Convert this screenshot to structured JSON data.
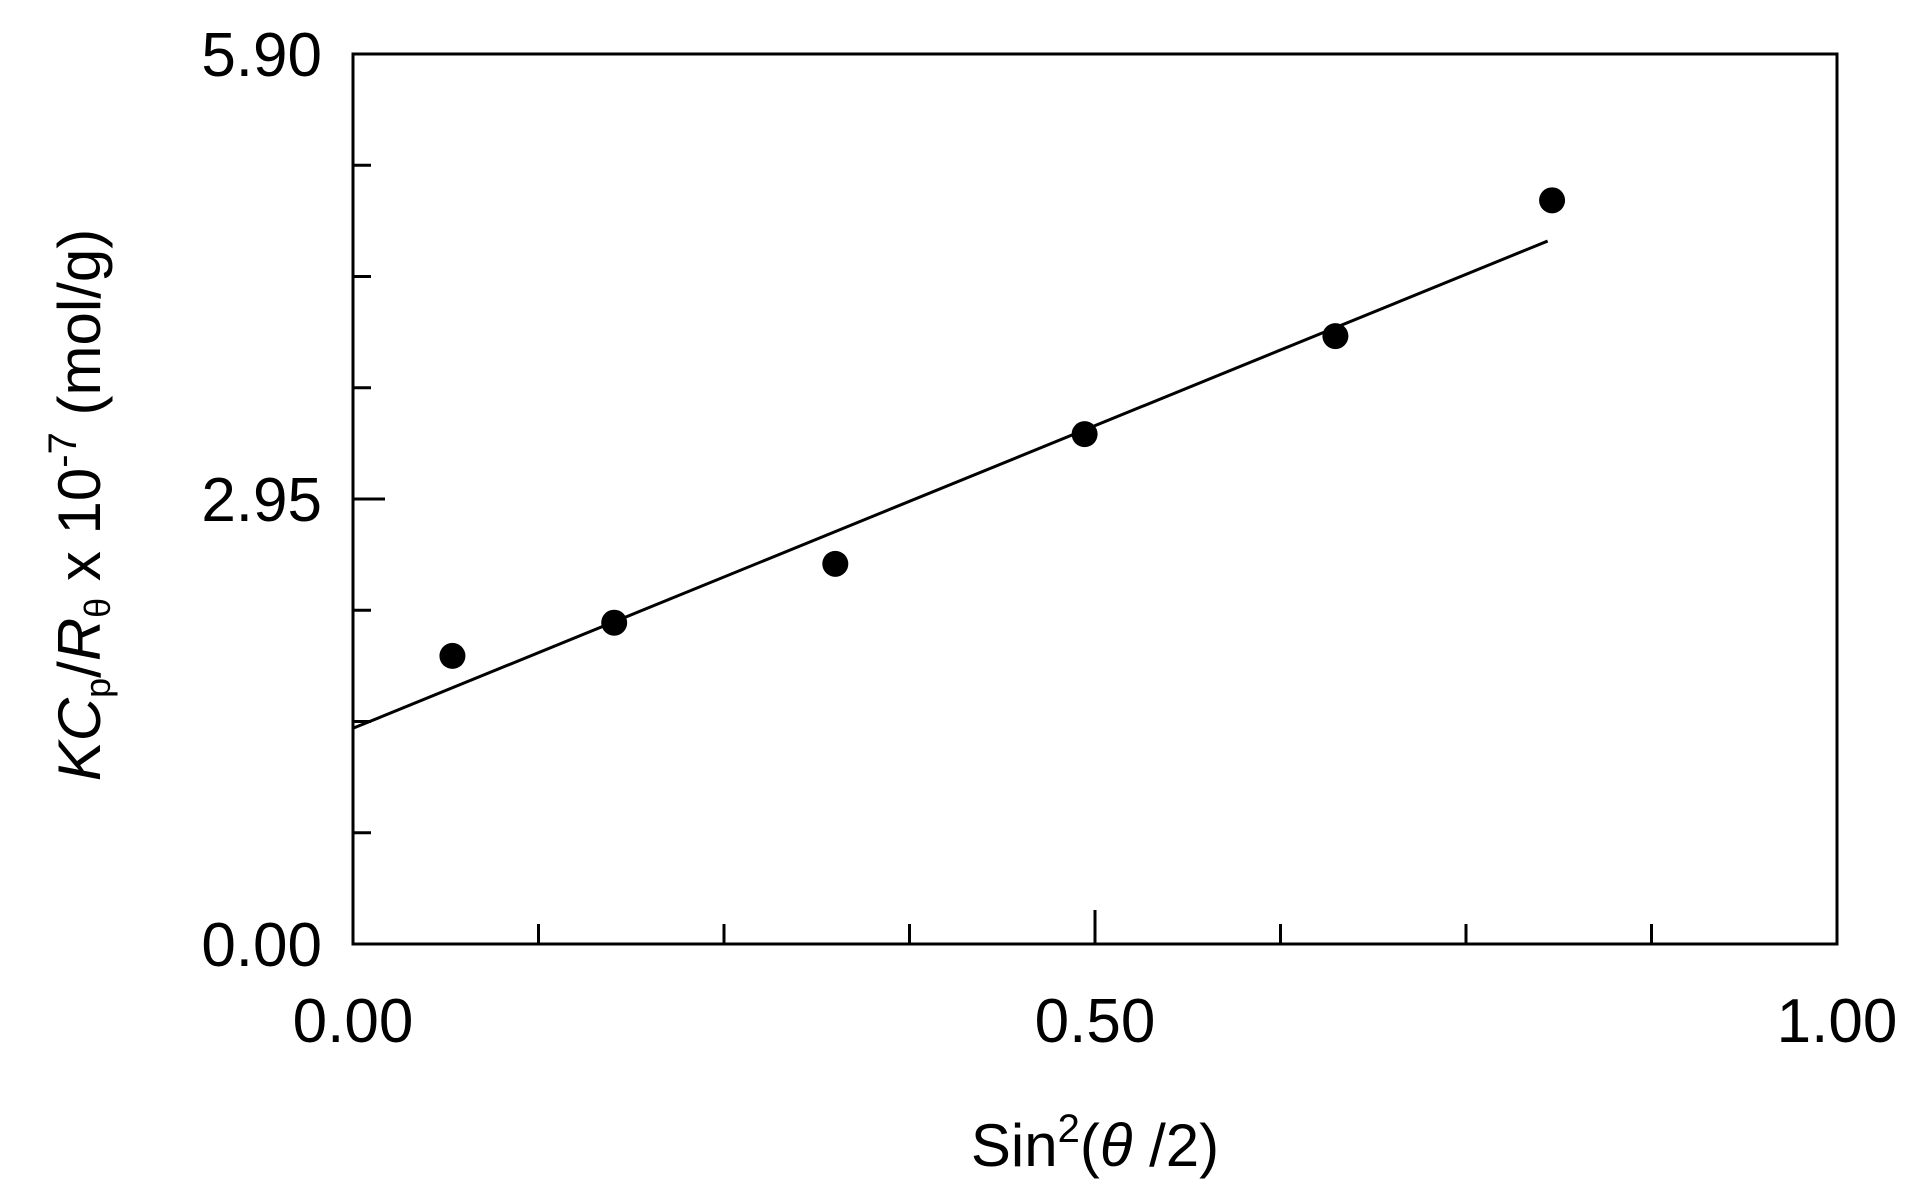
{
  "chart_data": {
    "type": "scatter",
    "xlim": [
      0.0,
      1.0
    ],
    "ylim": [
      0.0,
      5.9
    ],
    "x_ticks": [
      {
        "value": 0.0,
        "label": "0.00"
      },
      {
        "value": 0.5,
        "label": "0.50"
      },
      {
        "value": 1.0,
        "label": "1.00"
      }
    ],
    "x_minor_ticks": [
      0.125,
      0.25,
      0.375,
      0.625,
      0.75,
      0.875
    ],
    "y_ticks": [
      {
        "value": 0.0,
        "label": "0.00"
      },
      {
        "value": 2.95,
        "label": "2.95"
      },
      {
        "value": 5.9,
        "label": "5.90"
      }
    ],
    "y_minor_ticks": [
      0.7375,
      1.475,
      2.2125,
      3.6875,
      4.425,
      5.1625
    ],
    "xlabel": {
      "prefix": "Sin",
      "sup": "2",
      "open": "(",
      "symbol": "θ",
      "rest": " /2)"
    },
    "ylabel": {
      "K": "K",
      "C": "C",
      "p": "p",
      "slash": "/",
      "R": "R",
      "theta_sub": "θ",
      "times": " x 10",
      "exp": "-7",
      "unit": " (mol/g)"
    },
    "points": [
      {
        "x": 0.067,
        "y": 1.91
      },
      {
        "x": 0.176,
        "y": 2.13
      },
      {
        "x": 0.325,
        "y": 2.52
      },
      {
        "x": 0.493,
        "y": 3.38
      },
      {
        "x": 0.662,
        "y": 4.03
      },
      {
        "x": 0.808,
        "y": 4.93
      }
    ],
    "fit_line": {
      "x": [
        0.0,
        0.805
      ],
      "y": [
        1.43,
        4.66
      ]
    },
    "grid": false,
    "legend": "none",
    "colors": {
      "marker": "#000000",
      "line": "#000000",
      "axes": "#000000"
    }
  }
}
